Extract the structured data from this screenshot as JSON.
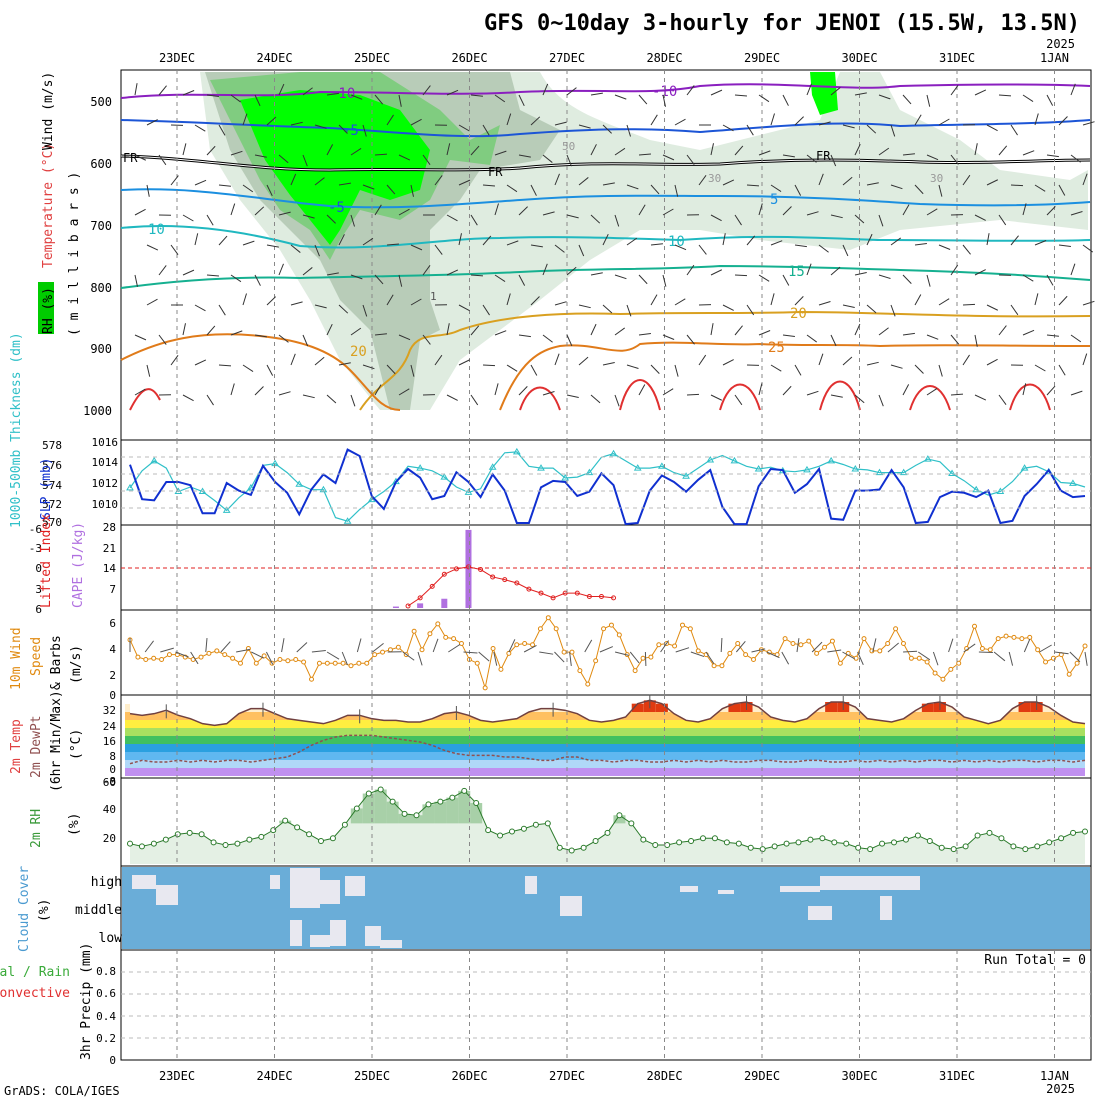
{
  "title": "GFS 0~10day 3-hourly for JENOI (15.5W, 13.5N)",
  "year_top": "2025",
  "year_bottom": "2025",
  "footer": "GrADS: COLA/IGES",
  "dates": [
    "23DEC",
    "24DEC",
    "25DEC",
    "26DEC",
    "27DEC",
    "28DEC",
    "29DEC",
    "30DEC",
    "31DEC",
    "1JAN"
  ],
  "colors": {
    "rh_green": "#00ff00",
    "rh_mid": "#7fcf7f",
    "rh_light": "#cfe5cf",
    "temp_neg10": "#8a1fbf",
    "temp_neg5": "#1c55d6",
    "temp_5": "#1b8fe0",
    "temp_10": "#20b8c0",
    "temp_15": "#15b090",
    "temp_20": "#d9a020",
    "temp_25": "#e07b1a",
    "temp_30": "#e03030",
    "slp": "#1030d0",
    "thickness": "#30c0c8",
    "cape": "#b070e0",
    "lifted": "#e02020",
    "wind": "#e08a10",
    "dewpt": "#905050",
    "rh2m": "#3a9a3a",
    "cloud_bg": "#6aadd8"
  },
  "panels": {
    "upper": {
      "ylabel_parts": [
        "RH (%)",
        "Temperature (°C)",
        "Wind (m/s)"
      ],
      "ylabel_unit": "( m i l l i b a r s )",
      "yticks": [
        "500",
        "600",
        "700",
        "800",
        "900",
        "1000"
      ],
      "labels": [
        "-10",
        "-10",
        "-5",
        "-5",
        "5",
        "5",
        "10",
        "10",
        "15",
        "20",
        "20",
        "25",
        "FR",
        "FR",
        "FR",
        "30",
        "30",
        "50",
        "1"
      ]
    },
    "slp": {
      "ylabel_left": "1000-500mb Thickness (dm)",
      "ylabel_right": "SLP (mb)",
      "yticks_left": [
        "578",
        "576",
        "574",
        "572",
        "570"
      ],
      "yticks_right": [
        "1016",
        "1014",
        "1012",
        "1010"
      ]
    },
    "cape": {
      "ylabel_left": "Lifted Index",
      "ylabel_right": "CAPE (J/kg)",
      "yticks_left": [
        "-6",
        "-3",
        "0",
        "3",
        "6"
      ],
      "yticks_right": [
        "28",
        "21",
        "14",
        "7"
      ]
    },
    "wind": {
      "ylabel": [
        "10m Wind",
        "Speed",
        "& Barbs",
        "(m/s)"
      ],
      "yticks": [
        "6",
        "4",
        "2",
        "0"
      ]
    },
    "temp": {
      "ylabel": [
        "2m Temp",
        "2m DewPt",
        "(6hr Min/Max)",
        "(°C)"
      ],
      "yticks": [
        "32",
        "24",
        "16",
        "8",
        "0",
        "-8"
      ]
    },
    "rh": {
      "ylabel": "2m RH",
      "unit": "(%)",
      "yticks": [
        "60",
        "40",
        "20"
      ]
    },
    "cloud": {
      "ylabel": "Cloud Cover",
      "unit": "(%)",
      "levels": [
        "high",
        "middle",
        "low"
      ]
    },
    "precip": {
      "ylabel_a": "Total / Rain",
      "ylabel_b": "Convective",
      "ylabel_c": "3hr Precip (mm)",
      "yticks": [
        "0.8",
        "0.6",
        "0.4",
        "0.2",
        "0"
      ],
      "run_total": "Run Total = 0"
    }
  },
  "chart_data": [
    {
      "type": "line",
      "name": "slp",
      "ylim": [
        1009,
        1016.5
      ],
      "values": [
        1014.4,
        1011.2,
        1011.1,
        1012.8,
        1012.8,
        1012.5,
        1009.9,
        1009.9,
        1012.7,
        1012.0,
        1011.6,
        1014.3,
        1012.8,
        1011.8,
        1009.8,
        1012.1,
        1013.5,
        1012.7,
        1015.8,
        1015.2,
        1011.5,
        1010.3,
        1012.8,
        1014.0,
        1013.2,
        1011.2,
        1011.5,
        1013.7,
        1012.8,
        1011.4,
        1013.5,
        1012.0,
        1009.0,
        1009.0,
        1012.3,
        1012.9,
        1012.8,
        1011.5,
        1011.9,
        1013.6,
        1012.5,
        1008.9,
        1009.0,
        1012.0,
        1013.4,
        1012.8,
        1011.9,
        1013.0,
        1013.9,
        1010.5,
        1008.9,
        1008.9,
        1012.4,
        1014.0,
        1013.9,
        1011.8,
        1012.6,
        1014.0,
        1009.4,
        1009.3,
        1012.0,
        1012.0,
        1012.1,
        1013.9,
        1012.3,
        1009.0,
        1009.1,
        1011.4,
        1011.9,
        1011.8,
        1011.4,
        1012.0,
        1009.0,
        1009.2,
        1011.5,
        1012.6,
        1013.9,
        1012.0,
        1011.4,
        1011.5
      ]
    },
    {
      "type": "line",
      "name": "thickness",
      "ylim": [
        569.5,
        578.5
      ],
      "values": [
        573.4,
        575.3,
        576.4,
        575.6,
        573.0,
        573.5,
        573.0,
        572.0,
        570.9,
        572.3,
        573.4,
        575.9,
        576.1,
        575.1,
        573.8,
        573.2,
        573.2,
        570.1,
        569.7,
        571.0,
        572.1,
        573.0,
        574.1,
        575.8,
        575.6,
        575.3,
        574.6,
        573.5,
        572.9,
        573.3,
        575.7,
        577.3,
        577.4,
        575.8,
        575.6,
        575.6,
        574.5,
        574.6,
        575.1,
        576.8,
        577.2,
        576.4,
        575.6,
        575.6,
        575.8,
        575.1,
        574.7,
        575.6,
        576.5,
        577.0,
        576.4,
        575.8,
        575.5,
        575.7,
        575.3,
        575.2,
        575.4,
        575.8,
        576.4,
        576.0,
        575.5,
        575.4,
        575.1,
        575.1,
        575.1,
        575.9,
        576.6,
        576.3,
        575.0,
        574.2,
        573.2,
        572.6,
        573.0,
        574.1,
        575.6,
        575.8,
        575.2,
        574.0,
        573.9,
        573.5
      ]
    },
    {
      "type": "line",
      "name": "lifted_index",
      "ylim": [
        -6,
        6
      ],
      "values": [
        null,
        null,
        null,
        null,
        null,
        null,
        null,
        null,
        null,
        null,
        null,
        null,
        null,
        null,
        null,
        null,
        null,
        null,
        null,
        null,
        null,
        null,
        null,
        5.7,
        4.5,
        2.8,
        1.0,
        0.2,
        -0.1,
        0.3,
        1.4,
        1.8,
        2.3,
        3.2,
        3.8,
        4.5,
        3.8,
        3.8,
        4.3,
        4.3,
        4.5,
        null,
        null,
        null,
        null,
        null,
        null,
        null,
        null,
        null,
        null,
        null,
        null,
        null,
        null,
        null,
        null,
        null,
        null,
        null,
        null,
        null,
        null,
        null,
        null,
        null,
        null,
        null,
        null,
        null,
        null,
        null,
        null,
        null,
        null,
        null,
        null,
        null,
        null,
        null
      ]
    },
    {
      "type": "bar",
      "name": "cape",
      "ylim": [
        0,
        28
      ],
      "index": [
        22,
        24,
        26,
        28
      ],
      "values": [
        0.5,
        1.6,
        3.2,
        27
      ]
    },
    {
      "type": "line",
      "name": "wind_speed",
      "ylim": [
        0,
        6.5
      ],
      "values": [
        4.4,
        3.0,
        2.8,
        2.9,
        2.8,
        3.2,
        3.2,
        3.0,
        2.8,
        3.0,
        3.3,
        3.5,
        3.2,
        2.9,
        2.5,
        3.7,
        2.5,
        3.1,
        2.5,
        2.8,
        2.7,
        2.8,
        2.6,
        1.2,
        2.5,
        2.5,
        2.5,
        2.5,
        2.3,
        2.5,
        2.5,
        3.2,
        3.4,
        3.6,
        3.8,
        3.2,
        5.1,
        3.6,
        4.9,
        5.7,
        4.6,
        4.5,
        4.1,
        2.8,
        2.5,
        0.5,
        3.7,
        2.0,
        3.3,
        4.0,
        4.1,
        4.0,
        5.3,
        6.2,
        5.3,
        3.4,
        3.4,
        1.9,
        0.8,
        2.7,
        5.3,
        5.6,
        4.8,
        3.2,
        1.9,
        2.9,
        3.0,
        4.0,
        4.1,
        3.9,
        5.6,
        5.3,
        3.5,
        3.2,
        2.3,
        2.3,
        3.3,
        4.1,
        3.2,
        2.8,
        3.6,
        3.4,
        3.2,
        4.5,
        4.1,
        4.0,
        4.3,
        3.3,
        3.8,
        4.3,
        2.5,
        3.3,
        2.9,
        4.5,
        3.5,
        3.5,
        4.1,
        5.3,
        4.1,
        2.9,
        2.9,
        2.6,
        1.7,
        1.2,
        2.0,
        2.5,
        3.7,
        5.5,
        3.7,
        3.6,
        4.5,
        4.7,
        4.6,
        4.5,
        4.6,
        3.6,
        2.6,
        2.9,
        3.2,
        1.6,
        2.5,
        3.9
      ]
    },
    {
      "type": "area",
      "name": "temp_2m",
      "ylim": [
        -10,
        38
      ],
      "values": [
        28,
        27,
        28,
        30,
        27,
        25,
        22,
        21,
        22,
        28,
        31,
        31,
        28,
        25,
        24,
        23,
        22,
        24,
        27,
        27,
        25,
        24,
        24,
        23,
        23,
        25,
        28,
        29,
        27,
        24,
        23,
        24,
        25,
        29,
        31,
        31,
        30,
        28,
        24,
        23,
        24,
        26,
        34,
        36,
        34,
        28,
        24,
        23,
        25,
        31,
        34,
        35,
        32,
        26,
        24,
        23,
        25,
        31,
        35,
        35,
        32,
        25,
        24,
        23,
        25,
        30,
        34,
        35,
        32,
        26,
        24,
        22,
        24,
        31,
        35,
        35,
        32,
        27,
        23,
        22
      ]
    },
    {
      "type": "line",
      "name": "dewpt_2m",
      "ylim": [
        -10,
        38
      ],
      "values": [
        -2,
        0,
        -1,
        -1,
        0,
        -1,
        0,
        -1,
        0,
        0,
        -1,
        0,
        1,
        2,
        5,
        9,
        12,
        14,
        15,
        15,
        15,
        14,
        13,
        12,
        11,
        9,
        6,
        4,
        3,
        3,
        3,
        2,
        2,
        1,
        0,
        0,
        2,
        2,
        0,
        0,
        -1,
        0,
        0,
        -1,
        -1,
        0,
        -1,
        0,
        -1,
        0,
        -1,
        -1,
        0,
        0,
        -1,
        -1,
        0,
        0,
        -1,
        -1,
        0,
        -1,
        0,
        -1,
        0,
        -1,
        0,
        0,
        -1,
        0,
        -1,
        0,
        -1,
        0,
        0,
        -1,
        0,
        0,
        -1,
        0
      ]
    },
    {
      "type": "area",
      "name": "rh_2m",
      "ylim": [
        0,
        62
      ],
      "values": [
        15,
        13,
        15,
        18,
        22,
        23,
        22,
        16,
        14,
        15,
        18,
        20,
        25,
        32,
        27,
        22,
        17,
        19,
        29,
        41,
        52,
        55,
        46,
        37,
        36,
        44,
        46,
        49,
        54,
        45,
        25,
        21,
        24,
        26,
        29,
        30,
        12,
        10,
        12,
        17,
        23,
        36,
        30,
        18,
        14,
        14,
        16,
        17,
        19,
        19,
        16,
        15,
        12,
        11,
        13,
        15,
        16,
        18,
        19,
        16,
        15,
        12,
        11,
        15,
        16,
        18,
        21,
        17,
        12,
        11,
        13,
        21,
        23,
        19,
        13,
        11,
        13,
        16,
        19,
        23,
        24
      ]
    },
    {
      "type": "bar",
      "name": "precip_3hr",
      "ylim": [
        0,
        1
      ],
      "values": []
    }
  ]
}
